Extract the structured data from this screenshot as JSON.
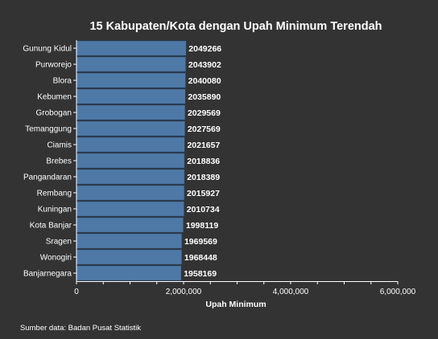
{
  "chart_data": {
    "type": "bar",
    "orientation": "horizontal",
    "title": "15 Kabupaten/Kota dengan Upah Minimum Terendah",
    "xlabel": "Upah Minimum",
    "ylabel": "",
    "categories": [
      "Gunung Kidul",
      "Purworejo",
      "Blora",
      "Kebumen",
      "Grobogan",
      "Temanggung",
      "Ciamis",
      "Brebes",
      "Pangandaran",
      "Rembang",
      "Kuningan",
      "Kota Banjar",
      "Sragen",
      "Wonogiri",
      "Banjarnegara"
    ],
    "values": [
      2049266,
      2043902,
      2040080,
      2035890,
      2029569,
      2027569,
      2021657,
      2018836,
      2018389,
      2015927,
      2010734,
      1998119,
      1969569,
      1968448,
      1958169
    ],
    "value_labels": [
      "2049266",
      "2043902",
      "2040080",
      "2035890",
      "2029569",
      "2027569",
      "2021657",
      "2018836",
      "2018389",
      "2015927",
      "2010734",
      "1998119",
      "1969569",
      "1968448",
      "1958169"
    ],
    "xlim": [
      0,
      6000000
    ],
    "x_ticks": [
      0,
      2000000,
      4000000,
      6000000
    ],
    "x_tick_labels": [
      "0",
      "2,000,000",
      "4,000,000",
      "6,000,000"
    ],
    "grid": false,
    "legend": "none",
    "source": "Sumber data: Badan Pusat Statistik"
  },
  "colors": {
    "background": "#333333",
    "bar_fill": "#4e79a7",
    "bar_stroke": "#2a3f5a",
    "axis": "#ffffff",
    "text": "#ffffff"
  }
}
